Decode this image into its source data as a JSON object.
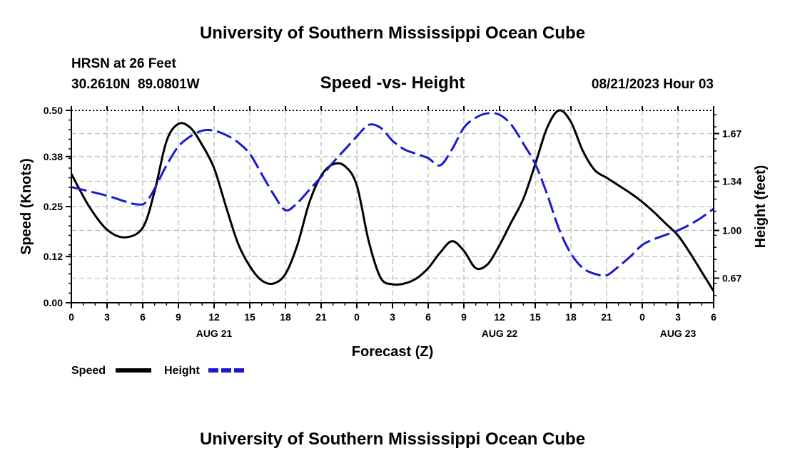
{
  "title": "University of Southern Mississippi Ocean Cube",
  "footer_title": "University of Southern Mississippi Ocean Cube",
  "station": {
    "name": "HRSN at 26 Feet",
    "coords": "30.2610N  89.0801W"
  },
  "chart_subtitle": "Speed -vs- Height",
  "timestamp": "08/21/2023 Hour 03",
  "colors": {
    "speed": "#000000",
    "height": "#1a1acc",
    "grid": "#bdbdbd",
    "axis": "#000000"
  },
  "chart_data": {
    "type": "line",
    "title": "Speed -vs- Height",
    "xlabel": "Forecast (Z)",
    "ylabel": "Speed (Knots)",
    "y2label": "Height (feet)",
    "xlim": [
      0,
      54
    ],
    "ylim": [
      0,
      0.5
    ],
    "y2lim": [
      0.5,
      1.83
    ],
    "x_ticks": [
      0,
      3,
      6,
      9,
      12,
      15,
      18,
      21,
      24,
      27,
      30,
      33,
      36,
      39,
      42,
      45,
      48,
      51,
      54
    ],
    "x_tick_labels": [
      "0",
      "3",
      "6",
      "9",
      "12",
      "15",
      "18",
      "21",
      "0",
      "3",
      "6",
      "9",
      "12",
      "15",
      "18",
      "21",
      "0",
      "3",
      "6"
    ],
    "date_labels": [
      {
        "x": 12,
        "label": "AUG 21"
      },
      {
        "x": 36,
        "label": "AUG 22"
      },
      {
        "x": 51,
        "label": "AUG 23"
      }
    ],
    "y_ticks": [
      0.0,
      0.12,
      0.25,
      0.38,
      0.5
    ],
    "y_tick_labels": [
      "0.00",
      "0.12",
      "0.25",
      "0.38",
      "0.50"
    ],
    "y2_ticks": [
      0.67,
      1.0,
      1.34,
      1.67
    ],
    "y2_tick_labels": [
      "0.67",
      "1.00",
      "1.34",
      "1.67"
    ],
    "grid": true,
    "legend": [
      "Speed",
      "Height"
    ],
    "series": [
      {
        "name": "Speed",
        "axis": "left",
        "style": "solid",
        "x": [
          0,
          1.5,
          3,
          4.5,
          6,
          7,
          8,
          9,
          10,
          11,
          12,
          13,
          14,
          15,
          16,
          17,
          18,
          19,
          20,
          21,
          22,
          23,
          24,
          25,
          26,
          27,
          28,
          29,
          30,
          31,
          32,
          33,
          34,
          35,
          36,
          37,
          38,
          39,
          40,
          41,
          42,
          43,
          44,
          45,
          46,
          47,
          48,
          49,
          50,
          51,
          52,
          53,
          54
        ],
        "values": [
          0.335,
          0.25,
          0.19,
          0.17,
          0.195,
          0.29,
          0.42,
          0.465,
          0.455,
          0.41,
          0.35,
          0.25,
          0.155,
          0.095,
          0.058,
          0.05,
          0.075,
          0.15,
          0.26,
          0.33,
          0.36,
          0.355,
          0.305,
          0.16,
          0.065,
          0.048,
          0.05,
          0.063,
          0.09,
          0.13,
          0.16,
          0.135,
          0.09,
          0.1,
          0.15,
          0.21,
          0.27,
          0.36,
          0.455,
          0.5,
          0.47,
          0.395,
          0.345,
          0.325,
          0.305,
          0.285,
          0.262,
          0.235,
          0.205,
          0.175,
          0.13,
          0.08,
          0.03
        ]
      },
      {
        "name": "Height",
        "axis": "right",
        "style": "dashed",
        "x": [
          0,
          3,
          5.5,
          6.5,
          8,
          9,
          10,
          11,
          12,
          13,
          14,
          15,
          16,
          17,
          18,
          19,
          20,
          21,
          22,
          23,
          24,
          25,
          26,
          27,
          28,
          29,
          30,
          31,
          32,
          33,
          34,
          35,
          36,
          37,
          38,
          39,
          40,
          41,
          42,
          43,
          44,
          45,
          46,
          47,
          48,
          49,
          50,
          51,
          52,
          53,
          54
        ],
        "values": [
          1.3,
          1.24,
          1.18,
          1.22,
          1.45,
          1.58,
          1.65,
          1.69,
          1.69,
          1.66,
          1.61,
          1.53,
          1.39,
          1.25,
          1.14,
          1.19,
          1.28,
          1.37,
          1.47,
          1.56,
          1.65,
          1.73,
          1.71,
          1.62,
          1.56,
          1.53,
          1.5,
          1.45,
          1.56,
          1.71,
          1.78,
          1.81,
          1.8,
          1.73,
          1.6,
          1.46,
          1.25,
          1.01,
          0.84,
          0.74,
          0.7,
          0.69,
          0.75,
          0.82,
          0.9,
          0.94,
          0.97,
          1.0,
          1.04,
          1.09,
          1.15
        ]
      }
    ]
  }
}
